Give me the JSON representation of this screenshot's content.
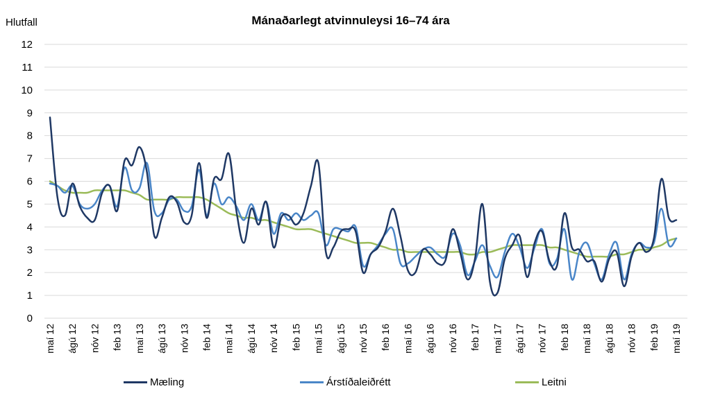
{
  "chart_data": {
    "type": "line",
    "title": "Mánaðarlegt atvinnuleysi 16–74 ára",
    "ylabel": "Hlutfall",
    "xlabel": "",
    "ylim": [
      0,
      12
    ],
    "yticks": [
      "0",
      "1",
      "2",
      "3",
      "4",
      "5",
      "6",
      "7",
      "8",
      "9",
      "10",
      "11",
      "12"
    ],
    "x": [
      "maí 12",
      "jún 12",
      "júl 12",
      "ágú 12",
      "sep 12",
      "okt 12",
      "nóv 12",
      "des 12",
      "jan 13",
      "feb 13",
      "mar 13",
      "apr 13",
      "maí 13",
      "jún 13",
      "júl 13",
      "ágú 13",
      "sep 13",
      "okt 13",
      "nóv 13",
      "des 13",
      "jan 14",
      "feb 14",
      "mar 14",
      "apr 14",
      "maí 14",
      "jún 14",
      "júl 14",
      "ágú 14",
      "sep 14",
      "okt 14",
      "nóv 14",
      "des 14",
      "jan 15",
      "feb 15",
      "mar 15",
      "apr 15",
      "maí 15",
      "jún 15",
      "júl 15",
      "ágú 15",
      "sep 15",
      "okt 15",
      "nóv 15",
      "des 15",
      "jan 16",
      "feb 16",
      "mar 16",
      "apr 16",
      "maí 16",
      "jún 16",
      "júl 16",
      "ágú 16",
      "sep 16",
      "okt 16",
      "nóv 16",
      "des 16",
      "jan 17",
      "feb 17",
      "mar 17",
      "apr 17",
      "maí 17",
      "jún 17",
      "júl 17",
      "ágú 17",
      "sep 17",
      "okt 17",
      "nóv 17",
      "des 17",
      "jan 18",
      "feb 18",
      "mar 18",
      "apr 18",
      "maí 18",
      "jún 18",
      "júl 18",
      "ágú 18",
      "sep 18",
      "okt 18",
      "nóv 18",
      "des 18",
      "jan 19",
      "feb 19",
      "mar 19",
      "apr 19",
      "maí 19"
    ],
    "xtick_labels": [
      "maí 12",
      "ágú 12",
      "nóv 12",
      "feb 13",
      "maí 13",
      "ágú 13",
      "nóv 13",
      "feb 14",
      "maí 14",
      "ágú 14",
      "nóv 14",
      "feb 15",
      "maí 15",
      "ágú 15",
      "nóv 15",
      "feb 16",
      "maí 16",
      "ágú 16",
      "nóv 16",
      "feb 17",
      "maí 17",
      "ágú 17",
      "nóv 17",
      "feb 18",
      "maí 18",
      "ágú 18",
      "nóv 18",
      "feb 19",
      "maí 19"
    ],
    "grid": true,
    "legend_position": "bottom",
    "series": [
      {
        "name": "Mæling",
        "color": "#1f3864",
        "values": [
          8.8,
          5.3,
          4.5,
          5.9,
          4.9,
          4.4,
          4.3,
          5.5,
          5.8,
          4.7,
          6.9,
          6.7,
          7.5,
          6.4,
          3.6,
          4.4,
          5.3,
          5.1,
          4.2,
          4.5,
          6.8,
          4.4,
          6.1,
          6.1,
          7.2,
          4.7,
          3.3,
          4.8,
          4.1,
          5.1,
          3.1,
          4.4,
          4.5,
          4.1,
          4.6,
          5.8,
          6.8,
          2.9,
          3.1,
          3.8,
          3.9,
          3.8,
          2.0,
          2.8,
          3.1,
          3.8,
          4.8,
          3.6,
          2.1,
          2.0,
          3.0,
          2.8,
          2.4,
          2.5,
          3.9,
          2.9,
          1.7,
          2.6,
          5.0,
          1.6,
          1.1,
          2.6,
          3.2,
          3.6,
          1.8,
          3.3,
          3.8,
          2.5,
          2.3,
          4.6,
          3.1,
          3.0,
          2.5,
          2.5,
          1.6,
          2.6,
          2.9,
          1.4,
          2.7,
          3.3,
          2.9,
          3.5,
          6.1,
          4.4,
          4.3
        ]
      },
      {
        "name": "Árstíðaleiðrétt",
        "color": "#4a86c8",
        "values": [
          5.9,
          5.8,
          5.5,
          5.8,
          5.0,
          4.8,
          5.0,
          5.6,
          5.8,
          4.9,
          6.6,
          5.6,
          5.7,
          6.8,
          4.7,
          4.6,
          5.2,
          5.2,
          4.7,
          4.9,
          6.5,
          4.5,
          5.9,
          5.0,
          5.3,
          4.9,
          4.3,
          5.0,
          4.3,
          5.1,
          3.7,
          4.6,
          4.3,
          4.6,
          4.3,
          4.5,
          4.6,
          3.2,
          3.9,
          3.9,
          3.8,
          4.0,
          2.3,
          2.8,
          3.2,
          3.7,
          3.9,
          2.4,
          2.4,
          2.7,
          3.0,
          3.1,
          2.8,
          2.7,
          3.7,
          3.2,
          1.9,
          2.5,
          3.2,
          2.3,
          1.8,
          2.9,
          3.7,
          3.1,
          2.2,
          3.1,
          3.9,
          2.4,
          2.6,
          3.9,
          1.7,
          2.9,
          3.3,
          2.4,
          1.7,
          2.8,
          3.3,
          1.7,
          2.8,
          3.3,
          3.1,
          3.3,
          4.8,
          3.2,
          3.5
        ]
      },
      {
        "name": "Leitni",
        "color": "#9bbb59",
        "values": [
          6.0,
          5.8,
          5.6,
          5.5,
          5.5,
          5.5,
          5.6,
          5.6,
          5.6,
          5.6,
          5.6,
          5.5,
          5.4,
          5.2,
          5.2,
          5.2,
          5.2,
          5.3,
          5.3,
          5.3,
          5.3,
          5.2,
          5.0,
          4.8,
          4.6,
          4.5,
          4.4,
          4.4,
          4.3,
          4.3,
          4.2,
          4.1,
          4.0,
          3.9,
          3.9,
          3.9,
          3.8,
          3.7,
          3.6,
          3.5,
          3.4,
          3.3,
          3.3,
          3.3,
          3.2,
          3.1,
          3.0,
          3.0,
          2.9,
          2.9,
          2.9,
          2.9,
          2.9,
          2.9,
          2.9,
          2.9,
          2.8,
          2.8,
          2.9,
          2.9,
          3.0,
          3.1,
          3.2,
          3.2,
          3.2,
          3.2,
          3.2,
          3.1,
          3.1,
          3.0,
          2.9,
          2.8,
          2.7,
          2.7,
          2.7,
          2.7,
          2.8,
          2.8,
          2.9,
          3.0,
          3.0,
          3.1,
          3.2,
          3.4,
          3.5
        ]
      }
    ]
  }
}
